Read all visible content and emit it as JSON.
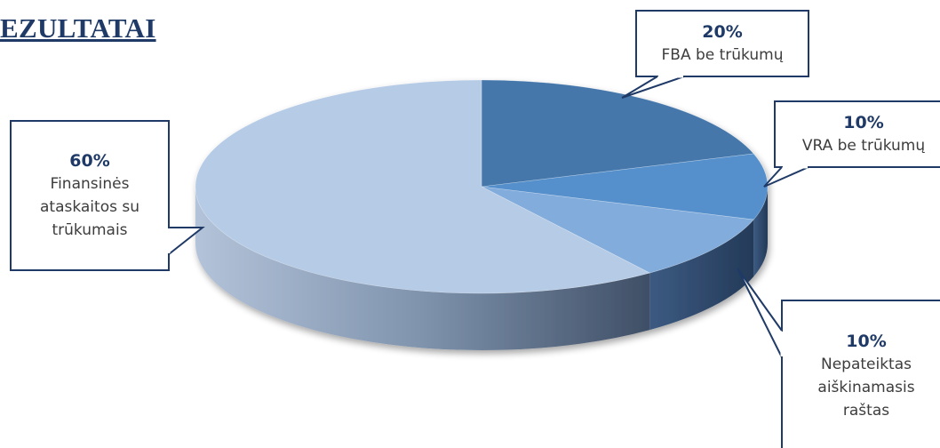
{
  "header": {
    "title": "EZULTATAI"
  },
  "chart_data": {
    "type": "pie",
    "style": "3d",
    "slices": [
      {
        "name": "FBA be trūkumų",
        "percent_label": "20%",
        "value": 20,
        "color": "#4577ab"
      },
      {
        "name": "VRA be trūkumų",
        "percent_label": "10%",
        "value": 10,
        "color": "#5590cc"
      },
      {
        "name": "Nepateiktas aiškinamasis raštas",
        "percent_label": "10%",
        "value": 10,
        "color": "#82acdb"
      },
      {
        "name": "Finansinės ataskaitos su trūkumais",
        "percent_label": "60%",
        "value": 60,
        "color": "#b6cbe6"
      }
    ],
    "labels": [
      {
        "pct": "20%",
        "lines": [
          "FBA be trūkumų"
        ]
      },
      {
        "pct": "10%",
        "lines": [
          "VRA be trūkumų"
        ]
      },
      {
        "pct": "10%",
        "lines": [
          "Nepateiktas",
          "aiškinamasis",
          "raštas"
        ]
      },
      {
        "pct": "60%",
        "lines": [
          "Finansinės",
          "ataskaitos su",
          "trūkumais"
        ]
      }
    ]
  }
}
